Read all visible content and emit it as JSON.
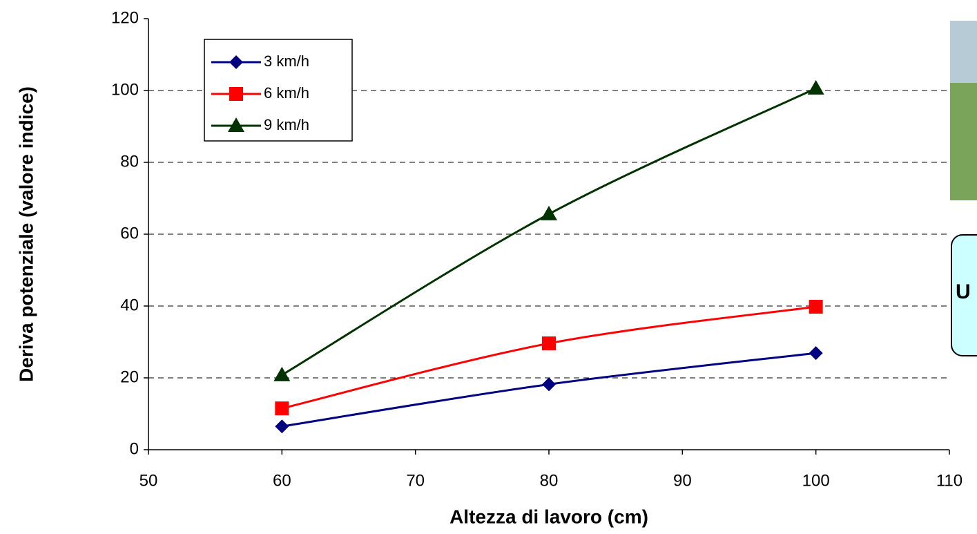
{
  "chart_data": {
    "type": "line",
    "x_label": "Altezza di lavoro (cm)",
    "y_label": "Deriva potenziale (valore indice)",
    "x": [
      60,
      80,
      100
    ],
    "series": [
      {
        "name": "3 km/h",
        "color": "#000080",
        "marker": "diamond",
        "values": [
          6.5,
          18.2,
          26.9
        ]
      },
      {
        "name": "6 km/h",
        "color": "#ff0000",
        "marker": "square",
        "values": [
          11.5,
          29.6,
          39.8
        ]
      },
      {
        "name": "9 km/h",
        "color": "#003300",
        "marker": "triangle",
        "values": [
          20.8,
          65.6,
          100.6
        ]
      }
    ],
    "xlim": [
      50,
      110
    ],
    "xticks": [
      50,
      60,
      70,
      80,
      90,
      100,
      110
    ],
    "ylim": [
      0,
      120
    ],
    "yticks": [
      0,
      20,
      40,
      60,
      80,
      100,
      120
    ],
    "grid": true,
    "legend": "upper left",
    "annotations": [
      "U"
    ]
  }
}
